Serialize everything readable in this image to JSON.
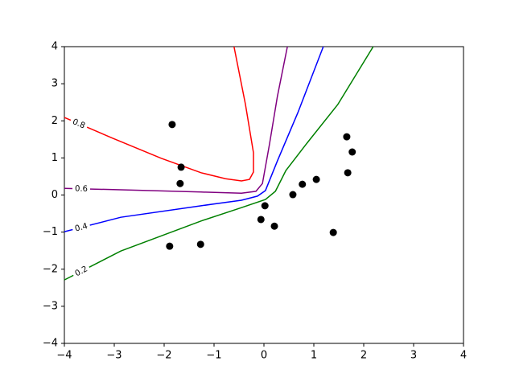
{
  "chart_data": {
    "type": "contour",
    "xlim": [
      -4,
      4
    ],
    "ylim": [
      -4,
      4
    ],
    "xticks": [
      {
        "value": -4,
        "label": "−4"
      },
      {
        "value": -3,
        "label": "−3"
      },
      {
        "value": -2,
        "label": "−2"
      },
      {
        "value": -1,
        "label": "−1"
      },
      0,
      1,
      2,
      3,
      4
    ],
    "yticks": [
      {
        "value": -4,
        "label": "−4"
      },
      {
        "value": -3,
        "label": "−3"
      },
      {
        "value": -2,
        "label": "−2"
      },
      {
        "value": -1,
        "label": "−1"
      },
      0,
      1,
      2,
      3,
      4
    ],
    "series": [
      {
        "level": 0.8,
        "color": "red",
        "x": [
          -4,
          -3.03,
          -2.06,
          -1.26,
          -0.77,
          -0.45,
          -0.29,
          -0.21,
          -0.21,
          -0.37,
          -0.6
        ],
        "y": [
          2.09,
          1.53,
          0.99,
          0.6,
          0.44,
          0.38,
          0.42,
          0.62,
          1.14,
          2.44,
          4.0
        ]
      },
      {
        "level": 0.6,
        "color": "purple",
        "x": [
          -4,
          -2.87,
          -1.26,
          -0.45,
          -0.16,
          -0.03,
          0.11,
          0.27,
          0.47
        ],
        "y": [
          0.18,
          0.14,
          0.08,
          0.05,
          0.1,
          0.31,
          1.36,
          2.66,
          4.0
        ]
      },
      {
        "level": 0.4,
        "color": "blue",
        "x": [
          -4,
          -2.87,
          -1.26,
          -0.45,
          -0.13,
          0.03,
          0.27,
          0.68,
          1.19
        ],
        "y": [
          -0.99,
          -0.6,
          -0.29,
          -0.14,
          -0.03,
          0.12,
          0.92,
          2.22,
          4.0
        ]
      },
      {
        "level": 0.2,
        "color": "green",
        "x": [
          -4,
          -2.87,
          -1.26,
          -0.45,
          0.03,
          0.23,
          0.44,
          0.84,
          1.48,
          2.19
        ],
        "y": [
          -2.29,
          -1.51,
          -0.7,
          -0.34,
          -0.12,
          0.1,
          0.66,
          1.36,
          2.44,
          4.0
        ]
      }
    ],
    "points": {
      "color": "black",
      "x": [
        -1.84,
        -1.66,
        -1.68,
        -1.89,
        -1.27,
        -0.06,
        0.02,
        0.21,
        0.58,
        0.77,
        1.05,
        1.39,
        1.66,
        1.77,
        1.68
      ],
      "y": [
        1.9,
        0.75,
        0.31,
        -1.38,
        -1.33,
        -0.66,
        -0.29,
        -0.84,
        0.01,
        0.29,
        0.42,
        -1.01,
        1.57,
        1.16,
        0.6
      ]
    }
  }
}
